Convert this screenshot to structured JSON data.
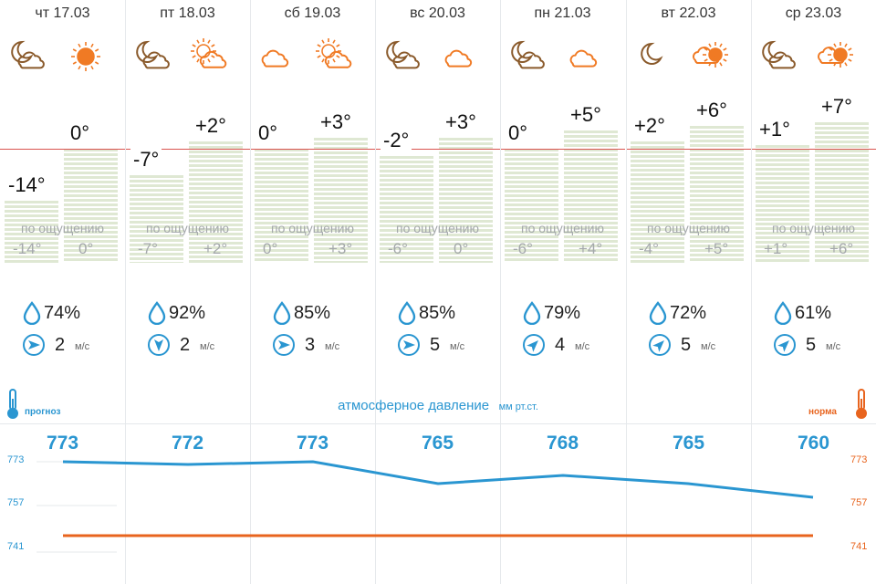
{
  "days": [
    {
      "date": "чт 17.03",
      "icon_night": "cloudy-moon-icon",
      "icon_day": "sun-icon",
      "t_night": "-14°",
      "t_day": "0°",
      "feels_label": "по ощущению",
      "feels_night": "-14°",
      "feels_day": "0°",
      "humidity": "74%",
      "wind_speed": "2",
      "wind_unit": "м/с",
      "wind_dir": "east",
      "pressure": "773"
    },
    {
      "date": "пт 18.03",
      "icon_night": "cloudy-moon-icon",
      "icon_day": "partly-cloudy-sun-icon",
      "t_night": "-7°",
      "t_day": "+2°",
      "feels_label": "по ощущению",
      "feels_night": "-7°",
      "feels_day": "+2°",
      "humidity": "92%",
      "wind_speed": "2",
      "wind_unit": "м/с",
      "wind_dir": "south",
      "pressure": "772"
    },
    {
      "date": "сб 19.03",
      "icon_night": "cloud-icon",
      "icon_day": "partly-cloudy-sun-icon",
      "t_night": "0°",
      "t_day": "+3°",
      "feels_label": "по ощущению",
      "feels_night": "0°",
      "feels_day": "+3°",
      "humidity": "85%",
      "wind_speed": "3",
      "wind_unit": "м/с",
      "wind_dir": "east",
      "pressure": "773"
    },
    {
      "date": "вс 20.03",
      "icon_night": "cloudy-moon-icon",
      "icon_day": "cloud-icon",
      "t_night": "-2°",
      "t_day": "+3°",
      "feels_label": "по ощущению",
      "feels_night": "-6°",
      "feels_day": "0°",
      "humidity": "85%",
      "wind_speed": "5",
      "wind_unit": "м/с",
      "wind_dir": "east",
      "pressure": "765"
    },
    {
      "date": "пн 21.03",
      "icon_night": "cloudy-moon-icon",
      "icon_day": "cloud-icon",
      "t_night": "0°",
      "t_day": "+5°",
      "feels_label": "по ощущению",
      "feels_night": "-6°",
      "feels_day": "+4°",
      "humidity": "79%",
      "wind_speed": "4",
      "wind_unit": "м/с",
      "wind_dir": "north-east",
      "pressure": "768"
    },
    {
      "date": "вт 22.03",
      "icon_night": "moon-icon",
      "icon_day": "cloudy-sun-icon",
      "t_night": "+2°",
      "t_day": "+6°",
      "feels_label": "по ощущению",
      "feels_night": "-4°",
      "feels_day": "+5°",
      "humidity": "72%",
      "wind_speed": "5",
      "wind_unit": "м/с",
      "wind_dir": "north-east",
      "pressure": "765"
    },
    {
      "date": "ср 23.03",
      "icon_night": "cloudy-moon-icon",
      "icon_day": "cloudy-sun-icon",
      "t_night": "+1°",
      "t_day": "+7°",
      "feels_label": "по ощущению",
      "feels_night": "+1°",
      "feels_day": "+6°",
      "humidity": "61%",
      "wind_speed": "5",
      "wind_unit": "м/с",
      "wind_dir": "north-east",
      "pressure": "760"
    }
  ],
  "pressure": {
    "title": "атмосферное давление",
    "unit": "мм рт.ст.",
    "forecast_label": "прогноз",
    "norm_label": "норма",
    "axis_ticks": [
      "773",
      "757",
      "741"
    ],
    "norm_value": 746
  },
  "colors": {
    "accent_blue": "#2a96d1",
    "norm_orange": "#e8641e",
    "zero_line": "#d9534f",
    "icon_brown": "#8a5a2b",
    "icon_orange": "#f07a24"
  }
}
